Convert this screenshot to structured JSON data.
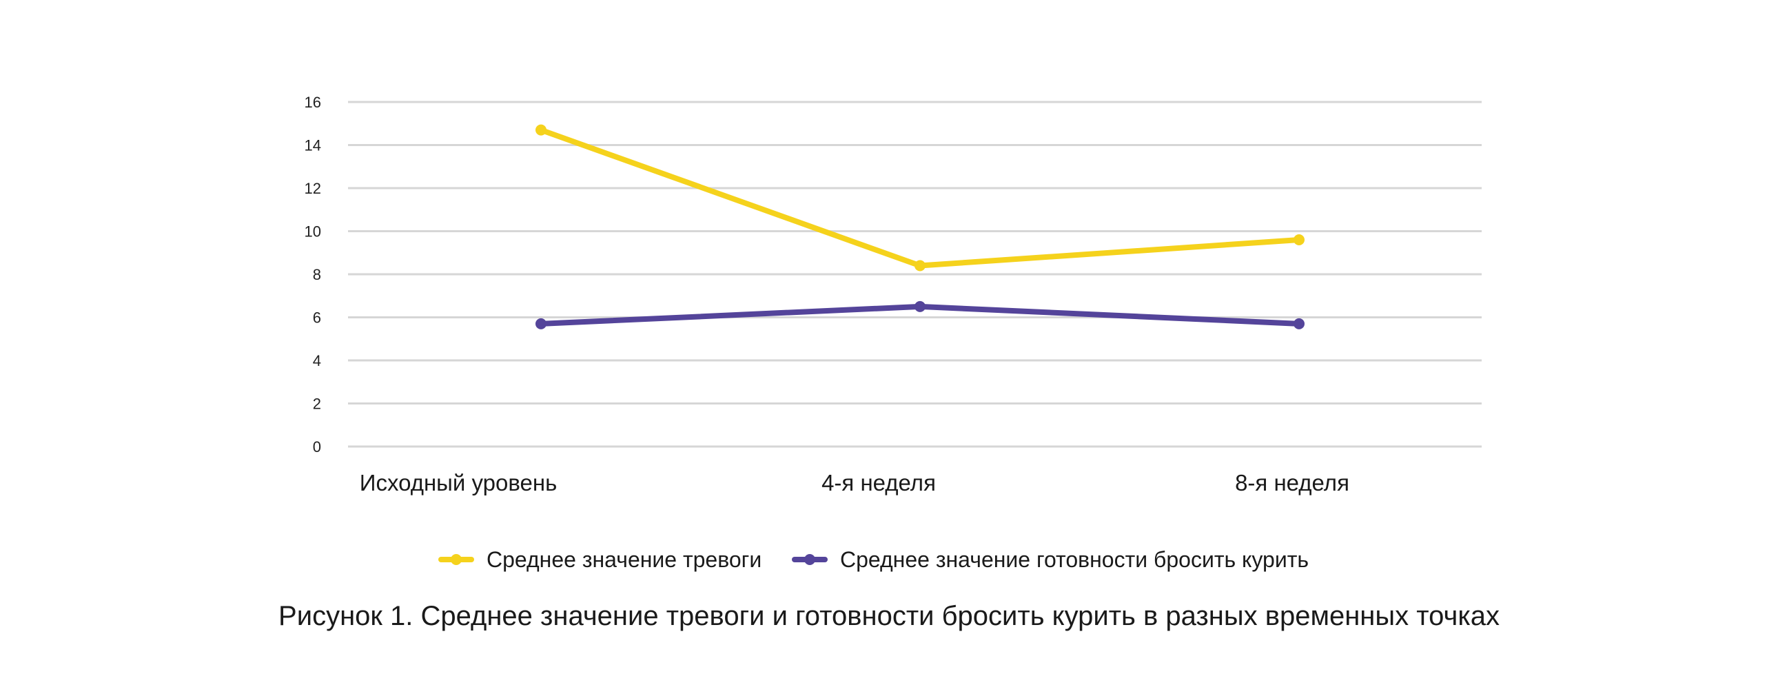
{
  "caption": "Рисунок 1. Среднее значение тревоги и готовности бросить курить в разных временных точках",
  "chart_data": {
    "type": "line",
    "title": "",
    "xlabel": "",
    "ylabel": "",
    "categories": [
      "Исходный уровень",
      "4-я неделя",
      "8-я неделя"
    ],
    "ylim": [
      0,
      16
    ],
    "yticks": [
      "0",
      "2",
      "4",
      "6",
      "8",
      "10",
      "12",
      "14",
      "16"
    ],
    "grid": true,
    "legend_position": "bottom",
    "series": [
      {
        "name": "Среднее значение тревоги",
        "values": [
          14.7,
          8.4,
          9.6
        ],
        "color": "#F5D21C"
      },
      {
        "name": "Среднее значение готовности бросить курить",
        "values": [
          5.7,
          6.5,
          5.7
        ],
        "color": "#54449A"
      }
    ]
  }
}
